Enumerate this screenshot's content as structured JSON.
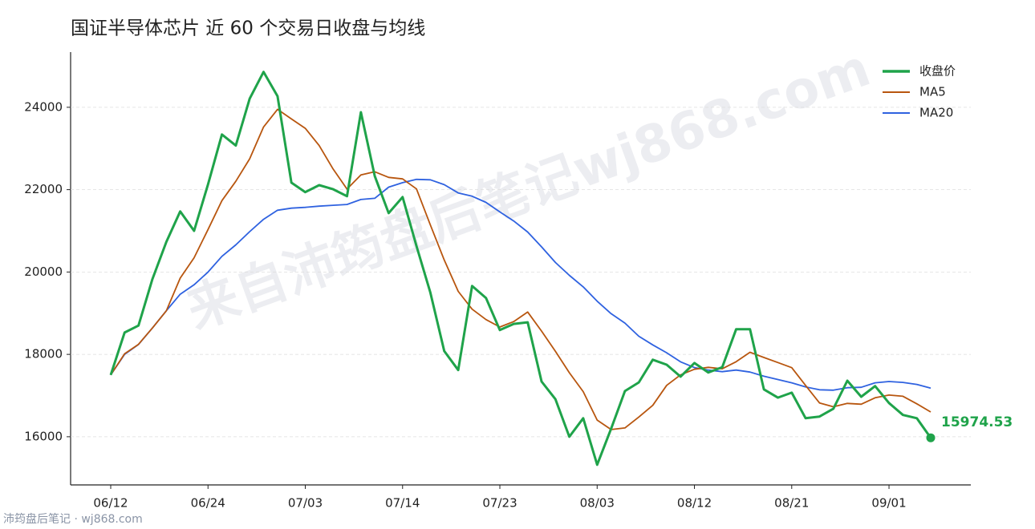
{
  "chart_data": {
    "type": "line",
    "title": "国证半导体芯片 近 60 个交易日收盘与均线",
    "watermark": "来自沛筠盘后笔记wj868.com",
    "footer": "沛筠盘后笔记 · wj868.com",
    "categories": [
      "06/12",
      null,
      null,
      null,
      null,
      null,
      null,
      "06/24",
      null,
      null,
      null,
      null,
      null,
      null,
      "07/03",
      null,
      null,
      null,
      null,
      null,
      null,
      "07/14",
      null,
      null,
      null,
      null,
      null,
      null,
      "07/23",
      null,
      null,
      null,
      null,
      null,
      null,
      "08/03",
      null,
      null,
      null,
      null,
      null,
      null,
      "08/12",
      null,
      null,
      null,
      null,
      null,
      null,
      "08/21",
      null,
      null,
      null,
      null,
      null,
      null,
      "09/01",
      null,
      null,
      null
    ],
    "series": [
      {
        "name": "收盘价",
        "color": "#1fa34a",
        "values": [
          17500,
          18530,
          18700,
          19830,
          20730,
          21470,
          21000,
          22130,
          23340,
          23070,
          24210,
          24860,
          24270,
          22170,
          21940,
          22110,
          22010,
          21840,
          23880,
          22330,
          21430,
          21820,
          20630,
          19500,
          18080,
          17620,
          19660,
          19370,
          18590,
          18740,
          18780,
          17340,
          16910,
          16000,
          16450,
          15320,
          16190,
          17110,
          17320,
          17870,
          17750,
          17460,
          17790,
          17560,
          17690,
          18610,
          18610,
          17150,
          16950,
          17070,
          16450,
          16490,
          16680,
          17360,
          16970,
          17230,
          16820,
          16530,
          16450,
          15974.53
        ]
      },
      {
        "name": "MA5",
        "color": "#b8560f",
        "values": [
          17500,
          18015,
          18243,
          18640,
          19058,
          19852,
          20346,
          21032,
          21734,
          22202,
          22750,
          23522,
          23950,
          23716,
          23490,
          23070,
          22500,
          22014,
          22356,
          22434,
          22298,
          22260,
          22018,
          21142,
          20292,
          19530,
          19098,
          18846,
          18664,
          18796,
          19028,
          18564,
          18072,
          17554,
          17096,
          16404,
          16174,
          16214,
          16478,
          16762,
          17248,
          17502,
          17638,
          17686,
          17650,
          17822,
          18052,
          17924,
          17802,
          17678,
          17246,
          16822,
          16728,
          16810,
          16790,
          16946,
          17012,
          16982,
          16800,
          16601
        ]
      },
      {
        "name": "MA20",
        "color": "#2f62e0",
        "values": [
          17500,
          18000,
          18240,
          18640,
          19060,
          19460,
          19690,
          20000,
          20380,
          20660,
          20980,
          21280,
          21500,
          21550,
          21570,
          21600,
          21620,
          21640,
          21760,
          21790,
          22060,
          22170,
          22250,
          22240,
          22120,
          21920,
          21840,
          21690,
          21460,
          21240,
          20970,
          20610,
          20230,
          19920,
          19640,
          19290,
          18990,
          18760,
          18440,
          18230,
          18040,
          17820,
          17680,
          17620,
          17580,
          17620,
          17570,
          17470,
          17390,
          17310,
          17210,
          17140,
          17130,
          17190,
          17200,
          17310,
          17340,
          17320,
          17270,
          17180
        ]
      }
    ],
    "ylim": [
      14830,
      25340
    ],
    "yticks": [
      16000,
      18000,
      20000,
      22000,
      24000
    ],
    "grid": true,
    "legend": "upper right"
  }
}
